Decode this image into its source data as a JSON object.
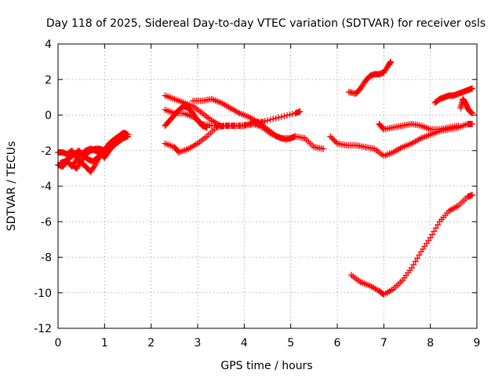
{
  "chart_data": {
    "type": "scatter",
    "title": "Day 118 of 2025, Sidereal Day-to-day VTEC variation (SDTVAR) for receiver osls",
    "xlabel": "GPS time / hours",
    "ylabel": "SDTVAR / TECUs",
    "xlim": [
      0,
      9
    ],
    "ylim": [
      -12,
      4
    ],
    "xticks": [
      0,
      1,
      2,
      3,
      4,
      5,
      6,
      7,
      8,
      9
    ],
    "yticks": [
      -12,
      -10,
      -8,
      -6,
      -4,
      -2,
      0,
      2,
      4
    ],
    "grid": true,
    "marker": "plus",
    "color": "#ff0000",
    "series": [
      {
        "points": [
          [
            0.0,
            -2.8
          ],
          [
            0.1,
            -2.9
          ],
          [
            0.2,
            -2.6
          ],
          [
            0.3,
            -2.9
          ],
          [
            0.4,
            -2.5
          ],
          [
            0.5,
            -2.7
          ],
          [
            0.6,
            -2.9
          ],
          [
            0.7,
            -3.2
          ],
          [
            0.8,
            -2.8
          ],
          [
            0.9,
            -2.3
          ],
          [
            1.0,
            -2.0
          ],
          [
            1.1,
            -1.6
          ],
          [
            1.2,
            -1.4
          ],
          [
            1.3,
            -1.2
          ],
          [
            1.4,
            -1.0
          ],
          [
            1.5,
            -1.1
          ]
        ]
      },
      {
        "points": [
          [
            0.0,
            -2.1
          ],
          [
            0.1,
            -2.1
          ],
          [
            0.2,
            -2.2
          ],
          [
            0.3,
            -2.0
          ],
          [
            0.4,
            -2.4
          ],
          [
            0.5,
            -2.2
          ],
          [
            0.6,
            -2.0
          ],
          [
            0.7,
            -1.9
          ],
          [
            0.8,
            -2.0
          ],
          [
            0.9,
            -2.1
          ],
          [
            1.0,
            -2.4
          ],
          [
            1.1,
            -2.0
          ],
          [
            1.2,
            -1.7
          ],
          [
            1.3,
            -1.5
          ],
          [
            1.4,
            -1.3
          ],
          [
            1.5,
            -1.2
          ]
        ]
      },
      {
        "points": [
          [
            0.05,
            -2.7
          ],
          [
            0.15,
            -2.6
          ],
          [
            0.25,
            -2.4
          ],
          [
            0.35,
            -2.2
          ],
          [
            0.45,
            -2.0
          ],
          [
            0.55,
            -2.3
          ],
          [
            0.65,
            -2.5
          ],
          [
            0.75,
            -2.6
          ],
          [
            0.85,
            -2.4
          ],
          [
            0.95,
            -2.1
          ],
          [
            1.05,
            -1.8
          ],
          [
            1.15,
            -1.5
          ],
          [
            1.25,
            -1.3
          ],
          [
            1.35,
            -1.2
          ],
          [
            1.45,
            -1.0
          ]
        ]
      },
      {
        "points": [
          [
            0.3,
            -2.8
          ],
          [
            0.4,
            -3.0
          ],
          [
            0.5,
            -2.6
          ],
          [
            0.6,
            -2.2
          ],
          [
            0.7,
            -2.0
          ],
          [
            0.8,
            -1.9
          ],
          [
            0.9,
            -1.9
          ],
          [
            1.0,
            -2.0
          ],
          [
            1.1,
            -1.9
          ],
          [
            1.2,
            -1.7
          ]
        ]
      },
      {
        "points": [
          [
            2.3,
            1.1
          ],
          [
            2.5,
            0.9
          ],
          [
            2.7,
            0.7
          ],
          [
            2.9,
            0.5
          ],
          [
            3.1,
            0.1
          ],
          [
            3.3,
            -0.3
          ],
          [
            3.5,
            -0.6
          ],
          [
            3.8,
            -0.6
          ],
          [
            4.0,
            -0.6
          ],
          [
            4.2,
            -0.5
          ],
          [
            4.5,
            -0.3
          ],
          [
            4.8,
            -0.1
          ],
          [
            5.1,
            0.1
          ],
          [
            5.2,
            0.2
          ]
        ]
      },
      {
        "points": [
          [
            2.3,
            0.3
          ],
          [
            2.5,
            0.1
          ],
          [
            2.7,
            0.1
          ],
          [
            2.9,
            -0.1
          ],
          [
            3.1,
            -0.5
          ],
          [
            3.3,
            -0.6
          ],
          [
            3.6,
            -0.6
          ],
          [
            3.9,
            -0.6
          ],
          [
            4.2,
            -0.5
          ],
          [
            4.4,
            -0.7
          ],
          [
            4.6,
            -1.1
          ],
          [
            4.8,
            -1.3
          ],
          [
            5.0,
            -1.3
          ],
          [
            5.1,
            -1.2
          ]
        ]
      },
      {
        "points": [
          [
            2.3,
            -0.6
          ],
          [
            2.4,
            -0.3
          ],
          [
            2.5,
            0.0
          ],
          [
            2.6,
            0.3
          ],
          [
            2.7,
            0.5
          ],
          [
            2.8,
            0.4
          ],
          [
            2.9,
            0.1
          ],
          [
            3.0,
            -0.3
          ],
          [
            3.1,
            -0.6
          ],
          [
            3.2,
            -0.7
          ]
        ]
      },
      {
        "points": [
          [
            2.3,
            -1.6
          ],
          [
            2.5,
            -1.8
          ],
          [
            2.6,
            -2.1
          ],
          [
            2.8,
            -1.9
          ],
          [
            3.0,
            -1.6
          ],
          [
            3.2,
            -1.2
          ],
          [
            3.4,
            -0.7
          ],
          [
            3.6,
            -0.6
          ],
          [
            3.8,
            -0.6
          ],
          [
            4.0,
            -0.6
          ],
          [
            4.2,
            -0.4
          ],
          [
            4.4,
            -0.4
          ]
        ]
      },
      {
        "points": [
          [
            2.9,
            0.8
          ],
          [
            3.1,
            0.8
          ],
          [
            3.3,
            0.9
          ],
          [
            3.5,
            0.7
          ],
          [
            3.7,
            0.4
          ],
          [
            3.9,
            0.1
          ],
          [
            4.1,
            -0.1
          ],
          [
            4.3,
            -0.4
          ],
          [
            4.5,
            -0.8
          ],
          [
            4.7,
            -1.2
          ],
          [
            4.9,
            -1.4
          ],
          [
            5.1,
            -1.2
          ],
          [
            5.3,
            -1.3
          ],
          [
            5.5,
            -1.8
          ],
          [
            5.7,
            -1.9
          ]
        ]
      },
      {
        "points": [
          [
            5.85,
            -1.2
          ],
          [
            6.0,
            -1.6
          ],
          [
            6.2,
            -1.7
          ],
          [
            6.4,
            -1.7
          ],
          [
            6.6,
            -1.8
          ],
          [
            6.8,
            -1.9
          ],
          [
            7.0,
            -2.3
          ],
          [
            7.2,
            -2.1
          ],
          [
            7.4,
            -1.8
          ],
          [
            7.6,
            -1.6
          ],
          [
            7.8,
            -1.3
          ],
          [
            8.0,
            -1.1
          ],
          [
            8.2,
            -0.9
          ],
          [
            8.4,
            -0.8
          ],
          [
            8.6,
            -0.7
          ],
          [
            8.8,
            -0.5
          ],
          [
            8.9,
            -0.5
          ]
        ]
      },
      {
        "points": [
          [
            6.9,
            -0.5
          ],
          [
            7.0,
            -0.8
          ],
          [
            7.2,
            -0.7
          ],
          [
            7.4,
            -0.6
          ],
          [
            7.6,
            -0.5
          ],
          [
            7.8,
            -0.6
          ],
          [
            8.0,
            -0.8
          ],
          [
            8.2,
            -0.8
          ],
          [
            8.4,
            -0.7
          ],
          [
            8.6,
            -0.6
          ]
        ]
      },
      {
        "points": [
          [
            6.25,
            1.3
          ],
          [
            6.4,
            1.2
          ],
          [
            6.5,
            1.5
          ],
          [
            6.6,
            1.9
          ],
          [
            6.7,
            2.2
          ],
          [
            6.8,
            2.3
          ],
          [
            6.9,
            2.3
          ],
          [
            7.0,
            2.4
          ],
          [
            7.1,
            2.8
          ],
          [
            7.15,
            3.0
          ]
        ]
      },
      {
        "points": [
          [
            8.1,
            0.7
          ],
          [
            8.2,
            0.9
          ],
          [
            8.3,
            1.0
          ],
          [
            8.4,
            1.1
          ],
          [
            8.5,
            1.1
          ],
          [
            8.6,
            1.2
          ],
          [
            8.7,
            1.3
          ],
          [
            8.8,
            1.4
          ],
          [
            8.9,
            1.5
          ]
        ]
      },
      {
        "points": [
          [
            8.65,
            0.4
          ],
          [
            8.7,
            0.9
          ],
          [
            8.75,
            0.7
          ],
          [
            8.8,
            0.4
          ],
          [
            8.85,
            0.2
          ],
          [
            8.9,
            0.1
          ]
        ]
      },
      {
        "points": [
          [
            6.3,
            -9.0
          ],
          [
            6.5,
            -9.4
          ],
          [
            6.7,
            -9.6
          ],
          [
            6.9,
            -9.9
          ],
          [
            7.0,
            -10.1
          ],
          [
            7.2,
            -9.8
          ],
          [
            7.4,
            -9.3
          ],
          [
            7.6,
            -8.6
          ],
          [
            7.8,
            -7.7
          ],
          [
            8.0,
            -6.9
          ],
          [
            8.2,
            -6.0
          ],
          [
            8.4,
            -5.4
          ],
          [
            8.6,
            -5.1
          ],
          [
            8.8,
            -4.6
          ],
          [
            8.9,
            -4.5
          ]
        ]
      }
    ]
  }
}
